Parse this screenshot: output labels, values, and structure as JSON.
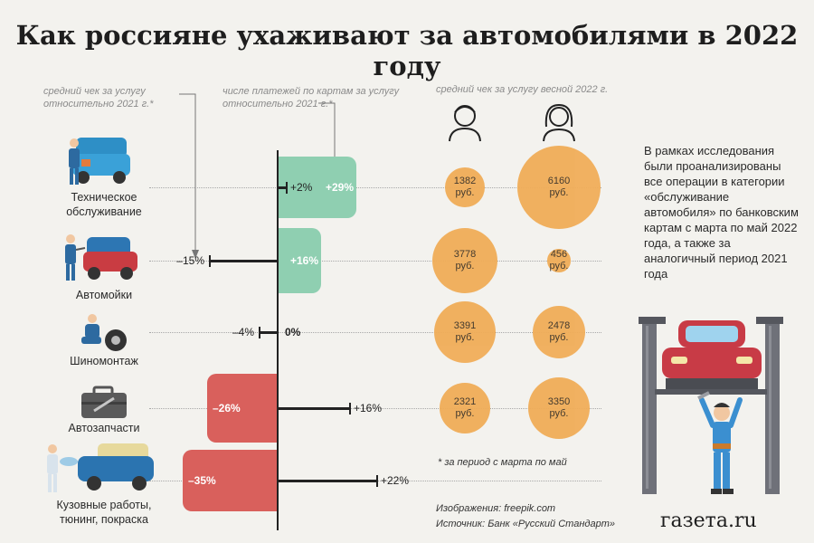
{
  "title": "Как россияне ухаживают за автомобилями в 2022 году",
  "notes": {
    "check_change": "средний чек за услугу\nотносительно 2021 г.*",
    "card_payments": "числе платежей по картам за услугу\nотносительно 2021 г.*",
    "avg_check_spring": "средний чек за услугу весной 2022 г."
  },
  "colors": {
    "green_bar": "#8fcfb1",
    "red_bar": "#d9605c",
    "bubble": "#f0ad58",
    "background": "#f3f2ee"
  },
  "icons": {
    "column_men": "man-icon",
    "column_women": "woman-icon",
    "illustration": "car-lift-mechanic-icon"
  },
  "chart_data": {
    "type": "bar",
    "categories": [
      "Техническое\nобслуживание",
      "Автомойки",
      "Шиномонтаж",
      "Автозапчасти",
      "Кузовные работы,\nтюнинг, покраска"
    ],
    "series": [
      {
        "values": [
          29,
          16,
          0,
          -26,
          -35
        ],
        "labels": [
          "+29%",
          "+16%",
          "0%",
          "–26%",
          "–35%"
        ]
      },
      {
        "values": [
          2,
          -15,
          -4,
          16,
          22
        ],
        "labels": [
          "+2%",
          "–15%",
          "–4%",
          "+16%",
          "+22%"
        ]
      }
    ],
    "bubbles": [
      {
        "values": [
          1382,
          3778,
          3391,
          2321
        ],
        "labels": [
          "1382\nруб.",
          "3778\nруб.",
          "3391\nруб.",
          "2321\nруб."
        ]
      },
      {
        "values": [
          6160,
          456,
          2478,
          3350
        ],
        "labels": [
          "6160\nруб.",
          "456\nруб.",
          "2478\nруб.",
          "3350\nруб."
        ]
      }
    ]
  },
  "right_text": "В рамках исследования были проанализированы все операции в категории «обслуживание автомобиля» по банковским картам с марта по май 2022 года, а также за аналогичный период 2021 года",
  "footnote": "* за период с марта по май",
  "credit": "Изображения: freepik.com",
  "source": "Источник: Банк «Русский Стандарт»",
  "brand": "газета.ru"
}
